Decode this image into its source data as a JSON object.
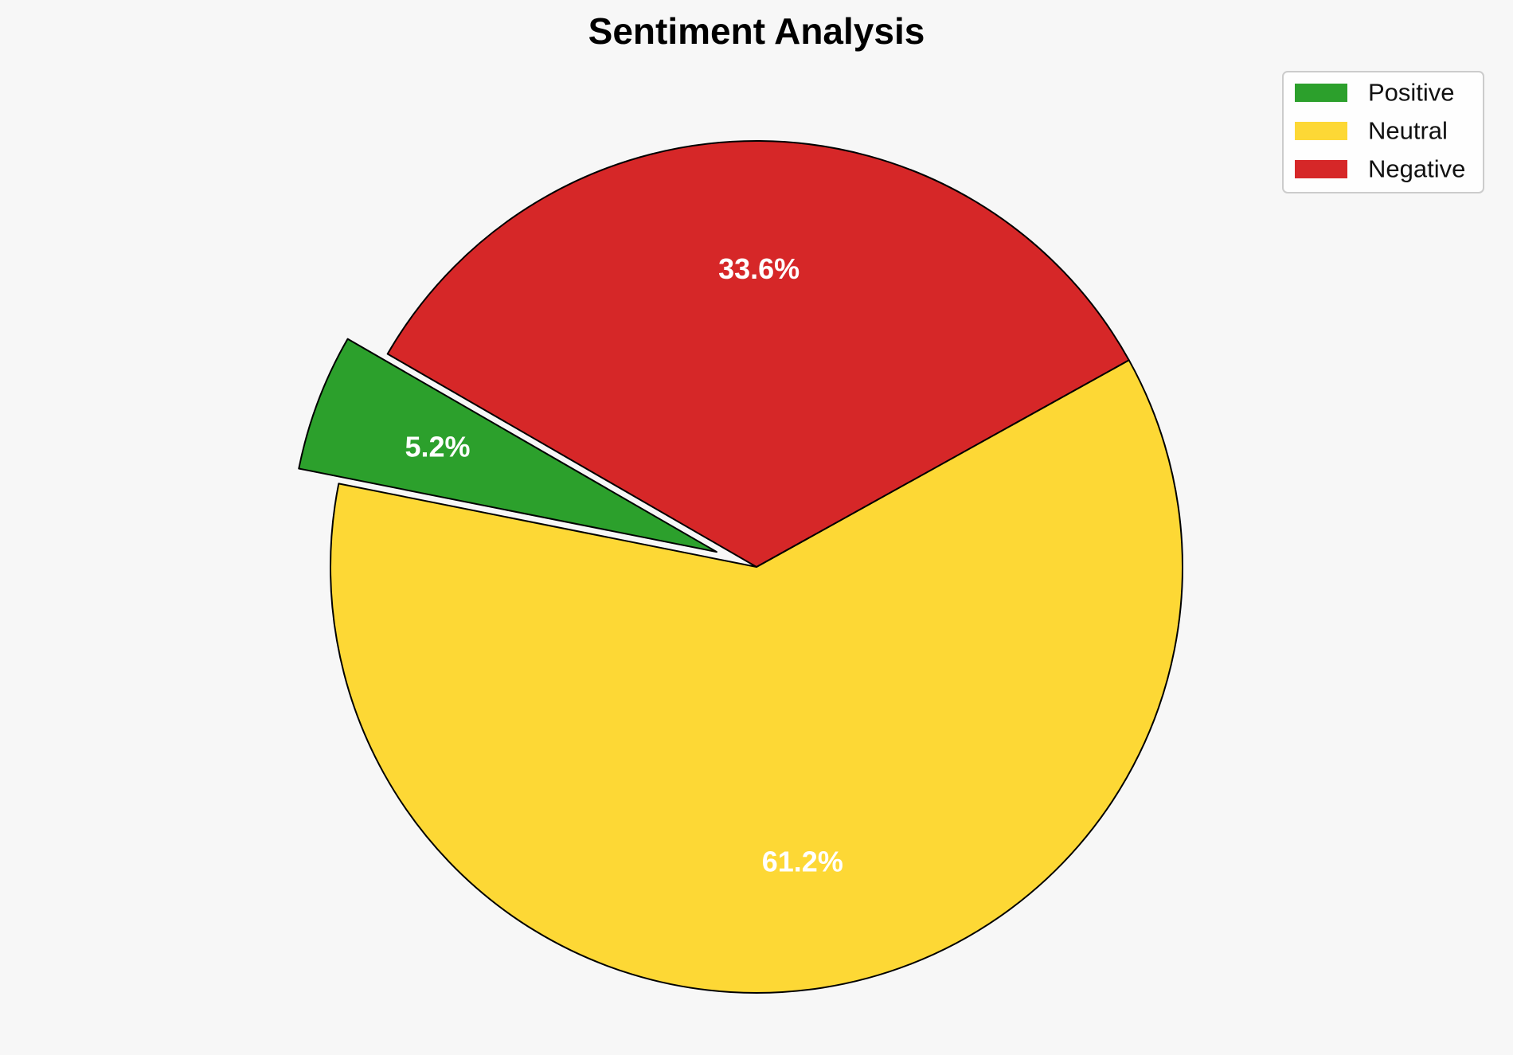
{
  "chart_data": {
    "type": "pie",
    "title": "Sentiment Analysis",
    "slices": [
      {
        "label": "Positive",
        "value": 5.2,
        "pct_label": "5.2%",
        "color": "#2ca02c",
        "exploded": true
      },
      {
        "label": "Neutral",
        "value": 61.2,
        "pct_label": "61.2%",
        "color": "#fdd835",
        "exploded": false
      },
      {
        "label": "Negative",
        "value": 33.6,
        "pct_label": "33.6%",
        "color": "#d62728",
        "exploded": false
      }
    ],
    "start_angle_deg": 150,
    "direction": "counterclockwise",
    "legend_position": "top-right",
    "edge_color": "#000000",
    "label_color": "#ffffff"
  }
}
